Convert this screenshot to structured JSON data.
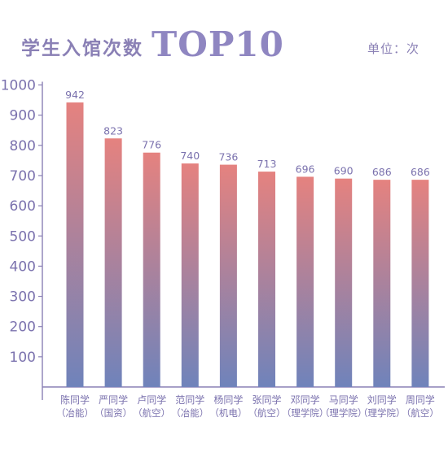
{
  "header": {
    "title_cn": "学生入馆次数",
    "title_en": "TOP10",
    "unit": "单位：次"
  },
  "colors": {
    "bar_top": "#e5827f",
    "bar_bottom": "#6f83bb",
    "axis": "#8a80b5",
    "text": "#7b72ae"
  },
  "chart_data": {
    "type": "bar",
    "title": "学生入馆次数TOP10",
    "ylabel": "单位：次",
    "xlabel": "",
    "ylim": [
      0,
      1000
    ],
    "yticks": [
      "100",
      "200",
      "300",
      "400",
      "500",
      "600",
      "700",
      "800",
      "900",
      "1000"
    ],
    "categories": [
      {
        "line1": "陈同学",
        "line2": "（冶能）"
      },
      {
        "line1": "严同学",
        "line2": "（国资）"
      },
      {
        "line1": "卢同学",
        "line2": "（航空）"
      },
      {
        "line1": "范同学",
        "line2": "（冶能）"
      },
      {
        "line1": "杨同学",
        "line2": "（机电）"
      },
      {
        "line1": "张同学",
        "line2": "（航空）"
      },
      {
        "line1": "邓同学",
        "line2": "（理学院）"
      },
      {
        "line1": "马同学",
        "line2": "（理学院）"
      },
      {
        "line1": "刘同学",
        "line2": "（理学院）"
      },
      {
        "line1": "周同学",
        "line2": "（航空）"
      }
    ],
    "values": [
      942,
      823,
      776,
      740,
      736,
      713,
      696,
      690,
      686,
      686
    ],
    "value_labels": [
      "942",
      "823",
      "776",
      "740",
      "736",
      "713",
      "696",
      "690",
      "686",
      "686"
    ],
    "grid": false,
    "legend": "none"
  }
}
